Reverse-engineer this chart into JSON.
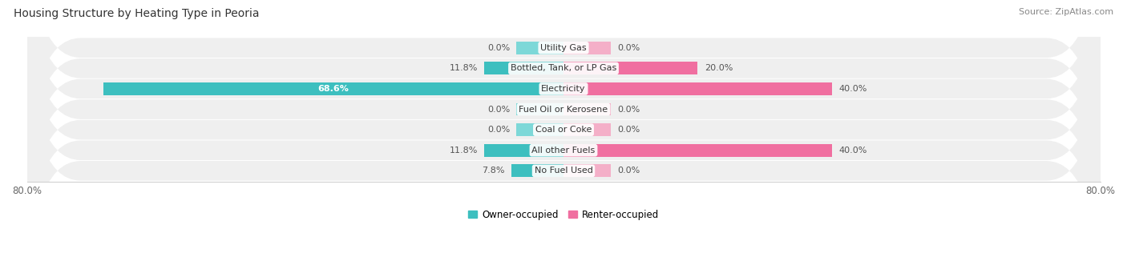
{
  "title": "Housing Structure by Heating Type in Peoria",
  "source": "Source: ZipAtlas.com",
  "categories": [
    "Utility Gas",
    "Bottled, Tank, or LP Gas",
    "Electricity",
    "Fuel Oil or Kerosene",
    "Coal or Coke",
    "All other Fuels",
    "No Fuel Used"
  ],
  "owner_values": [
    0.0,
    11.8,
    68.6,
    0.0,
    0.0,
    11.8,
    7.8
  ],
  "renter_values": [
    0.0,
    20.0,
    40.0,
    0.0,
    0.0,
    40.0,
    0.0
  ],
  "owner_color": "#3dbfbf",
  "owner_color_light": "#7dd8d8",
  "renter_color": "#f06fa0",
  "renter_color_light": "#f4afc8",
  "row_bg_color": "#efefef",
  "row_alt_color": "#e8e8e8",
  "xlim_left": -80.0,
  "xlim_right": 80.0,
  "title_fontsize": 10,
  "source_fontsize": 8,
  "label_fontsize": 8,
  "pct_fontsize": 8,
  "bar_height": 0.62,
  "zero_stub": 7.0,
  "legend_labels": [
    "Owner-occupied",
    "Renter-occupied"
  ]
}
